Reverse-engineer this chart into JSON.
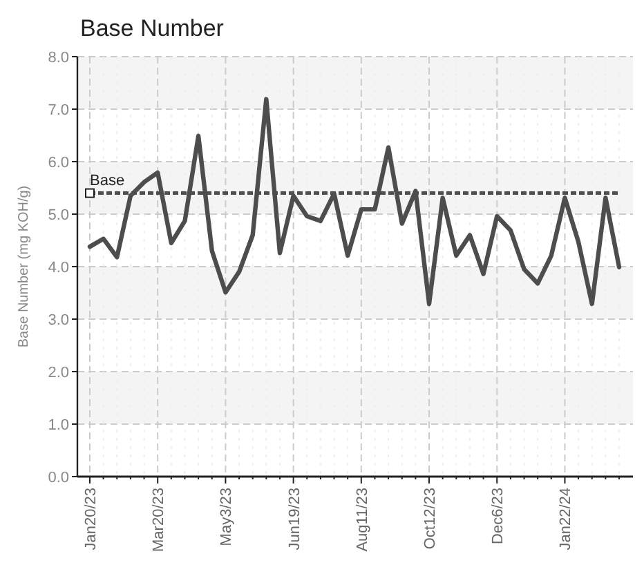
{
  "chart_data": {
    "type": "line",
    "title": "Base Number",
    "ylabel": "Base Number (mg KOH/g)",
    "categories": [
      "Jan20/23",
      null,
      null,
      null,
      null,
      "Mar20/23",
      null,
      null,
      null,
      null,
      "May3/23",
      null,
      null,
      null,
      null,
      "Jun19/23",
      null,
      null,
      null,
      null,
      "Aug11/23",
      null,
      null,
      null,
      null,
      "Oct12/23",
      null,
      null,
      null,
      null,
      "Dec6/23",
      null,
      null,
      null,
      null,
      "Jan22/24",
      null,
      null,
      null,
      null
    ],
    "series": [
      {
        "color": "#4d4d4d",
        "values": [
          4.38,
          4.53,
          4.18,
          5.35,
          5.61,
          5.79,
          4.45,
          4.87,
          6.49,
          4.3,
          3.51,
          3.9,
          4.6,
          7.19,
          4.26,
          5.35,
          4.96,
          4.87,
          5.39,
          4.21,
          5.09,
          5.09,
          6.27,
          4.82,
          5.44,
          3.29,
          5.31,
          4.21,
          4.6,
          3.86,
          4.96,
          4.69,
          3.95,
          3.68,
          4.21,
          5.31,
          4.47,
          3.29,
          5.31,
          3.99
        ]
      }
    ],
    "ylim": [
      0,
      8
    ],
    "yticks": [
      {
        "value": 0,
        "label": "0.0"
      },
      {
        "value": 1,
        "label": "1.0"
      },
      {
        "value": 2,
        "label": "2.0"
      },
      {
        "value": 3,
        "label": "3.0"
      },
      {
        "value": 4,
        "label": "4.0"
      },
      {
        "value": 5,
        "label": "5.0"
      },
      {
        "value": 6,
        "label": "6.0"
      },
      {
        "value": 7,
        "label": "7.0"
      },
      {
        "value": 8,
        "label": "8.0"
      }
    ],
    "ref_lines": [
      {
        "axis": "y",
        "value": 5.4,
        "label": "Base",
        "color": "#4d4d4d",
        "line_style": "dashed"
      }
    ],
    "grid": true,
    "marker": "none",
    "line_style": "solid"
  }
}
